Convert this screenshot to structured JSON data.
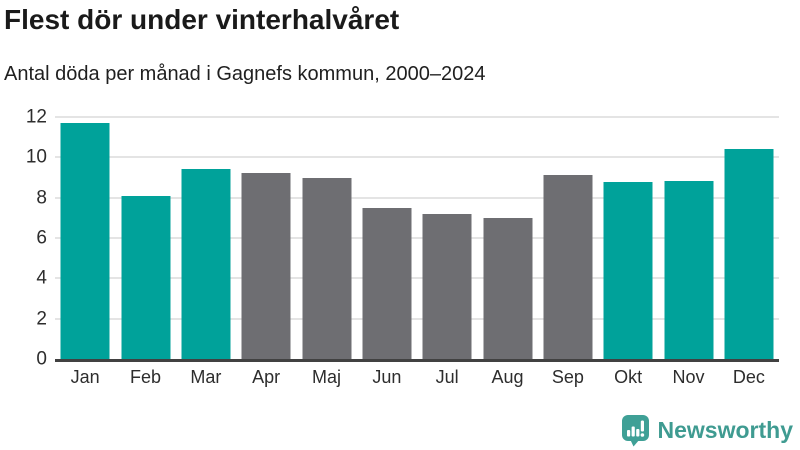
{
  "header": {
    "title": "Flest dör under vinterhalvåret",
    "subtitle": "Antal döda per månad i Gagnefs kommun, 2000–2024"
  },
  "chart_data": {
    "type": "bar",
    "title": "Flest dör under vinterhalvåret",
    "subtitle": "Antal döda per månad i Gagnefs kommun, 2000–2024",
    "categories": [
      "Jan",
      "Feb",
      "Mar",
      "Apr",
      "Maj",
      "Jun",
      "Jul",
      "Aug",
      "Sep",
      "Okt",
      "Nov",
      "Dec"
    ],
    "values": [
      11.7,
      8.1,
      9.4,
      9.2,
      9.0,
      7.5,
      7.2,
      7.0,
      9.1,
      8.8,
      8.85,
      10.4
    ],
    "bar_color_keys": [
      "highlight",
      "highlight",
      "highlight",
      "neutral",
      "neutral",
      "neutral",
      "neutral",
      "neutral",
      "neutral",
      "highlight",
      "highlight",
      "highlight"
    ],
    "xlabel": "",
    "ylabel": "",
    "ylim": [
      0,
      12
    ],
    "yticks": [
      0,
      2,
      4,
      6,
      8,
      10,
      12
    ],
    "grid": "horizontal",
    "legend": "none"
  },
  "colors": {
    "highlight": "#00a29a",
    "neutral": "#6e6e72",
    "grid": "#e4e4e4",
    "axis": "#414141",
    "title_text": "#1a1a1a",
    "tick_text": "#2d2d2d",
    "logo": "#3f9b91"
  },
  "footer": {
    "brand": "Newsworthy",
    "logo_icon": "bar-chart-speech-bubble-icon"
  }
}
